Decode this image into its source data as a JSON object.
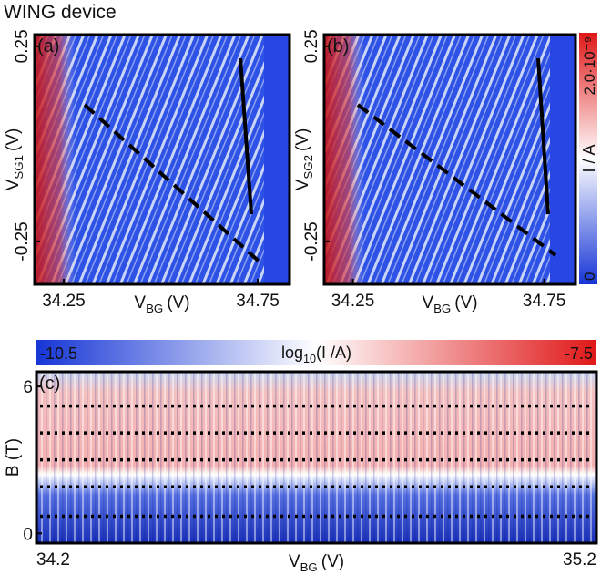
{
  "title": "WING device",
  "chart_data": [
    {
      "type": "heatmap",
      "panel_label": "(a)",
      "x_label": {
        "symbol": "V",
        "subscript": "BG",
        "unit": "(V)"
      },
      "y_label": {
        "symbol": "V",
        "subscript": "SG1",
        "unit": "(V)"
      },
      "xlim": [
        34.175,
        34.832
      ],
      "xticks": [
        34.25,
        34.75
      ],
      "ylim": [
        -0.36,
        0.28
      ],
      "yticks": [
        -0.25,
        0.25
      ],
      "texture": "diagonal"
    },
    {
      "type": "heatmap",
      "panel_label": "(b)",
      "x_label": {
        "symbol": "V",
        "subscript": "BG",
        "unit": "(V)"
      },
      "y_label": {
        "symbol": "V",
        "subscript": "SG2",
        "unit": "(V)"
      },
      "xlim": [
        34.175,
        34.832
      ],
      "xticks": [
        34.25,
        34.75
      ],
      "ylim": [
        -0.36,
        0.28
      ],
      "yticks": [
        -0.25,
        0.25
      ],
      "texture": "diagonal",
      "colorbar": {
        "label": "I / A",
        "orientation": "vertical",
        "colormap": [
          "#1636d6",
          "#ffffff",
          "#e01818"
        ],
        "lim": [
          0,
          2e-09
        ],
        "ticks": [
          0,
          {
            "value": 2e-09,
            "label": "2.0·10⁻⁹"
          }
        ]
      }
    },
    {
      "type": "heatmap",
      "panel_label": "(c)",
      "x_label": {
        "symbol": "V",
        "subscript": "BG",
        "unit": "(V)"
      },
      "y_label": "B (T)",
      "xlim": [
        34.2,
        35.2
      ],
      "xticks": [
        34.2,
        35.2
      ],
      "ylim": [
        -0.4,
        6.6
      ],
      "yticks": [
        0,
        6
      ],
      "texture": "bands",
      "guide_lines": [
        5.2,
        4.1,
        3.0,
        1.9,
        0.7
      ],
      "colorbar": {
        "label": {
          "symbol": "log",
          "subscript": "10",
          "unit": "(I /A)"
        },
        "orientation": "horizontal",
        "colormap": [
          "#1636d6",
          "#ffffff",
          "#e01818"
        ],
        "lim": [
          -10.5,
          -7.5
        ],
        "ticks": [
          -10.5,
          -7.5
        ]
      }
    }
  ]
}
